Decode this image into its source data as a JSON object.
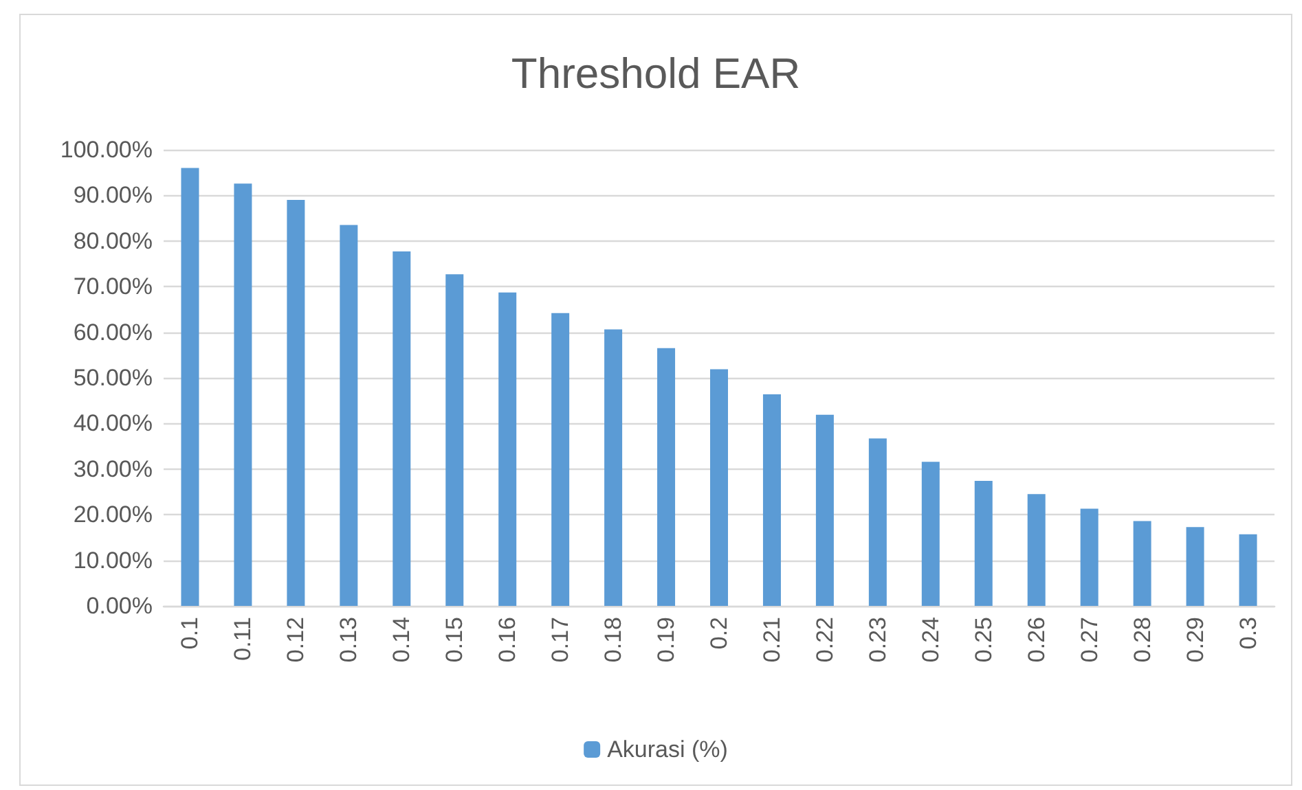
{
  "chart_data": {
    "type": "bar",
    "title": "Threshold EAR",
    "categories": [
      "0.1",
      "0.11",
      "0.12",
      "0.13",
      "0.14",
      "0.15",
      "0.16",
      "0.17",
      "0.18",
      "0.19",
      "0.2",
      "0.21",
      "0.22",
      "0.23",
      "0.24",
      "0.25",
      "0.26",
      "0.27",
      "0.28",
      "0.29",
      "0.3"
    ],
    "series": [
      {
        "name": "Akurasi (%)",
        "color": "#5b9bd5",
        "values": [
          96.0,
          92.6,
          89.0,
          83.5,
          77.7,
          72.7,
          68.7,
          64.2,
          60.6,
          56.5,
          51.9,
          46.4,
          41.9,
          36.7,
          31.6,
          27.4,
          24.5,
          21.3,
          18.6,
          17.3,
          15.7
        ]
      }
    ],
    "ylim": [
      0,
      100
    ],
    "yticks": [
      {
        "value": 0,
        "label": "0.00%"
      },
      {
        "value": 10,
        "label": "10.00%"
      },
      {
        "value": 20,
        "label": "20.00%"
      },
      {
        "value": 30,
        "label": "30.00%"
      },
      {
        "value": 40,
        "label": "40.00%"
      },
      {
        "value": 50,
        "label": "50.00%"
      },
      {
        "value": 60,
        "label": "60.00%"
      },
      {
        "value": 70,
        "label": "70.00%"
      },
      {
        "value": 80,
        "label": "80.00%"
      },
      {
        "value": 90,
        "label": "90.00%"
      },
      {
        "value": 100,
        "label": "100.00%"
      }
    ],
    "grid": "y",
    "legend": "bottom"
  }
}
